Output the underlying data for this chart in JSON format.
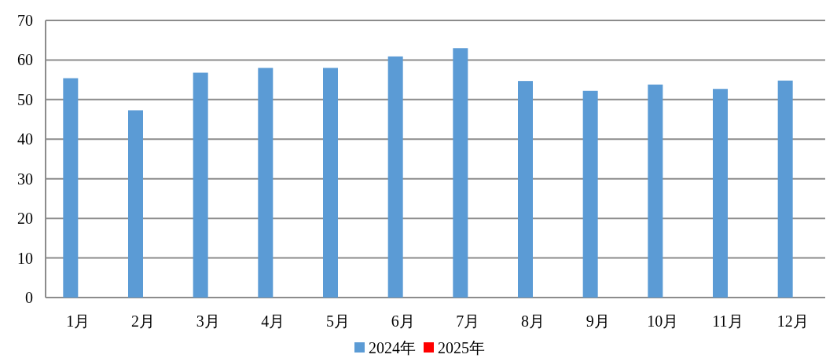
{
  "chart_data": {
    "type": "bar",
    "categories": [
      "1月",
      "2月",
      "3月",
      "4月",
      "5月",
      "6月",
      "7月",
      "8月",
      "9月",
      "10月",
      "11月",
      "12月"
    ],
    "series": [
      {
        "name": "2024年",
        "color": "#5b9bd5",
        "values": [
          55.4,
          47.3,
          56.8,
          58.0,
          58.0,
          60.9,
          63.0,
          54.7,
          52.2,
          53.8,
          52.7,
          54.8
        ]
      },
      {
        "name": "2025年",
        "color": "#ff0000",
        "values": [
          null,
          null,
          null,
          null,
          null,
          null,
          null,
          null,
          null,
          null,
          null,
          null
        ]
      }
    ],
    "ylim": [
      0,
      70
    ],
    "yticks": [
      0,
      10,
      20,
      30,
      40,
      50,
      60,
      70
    ],
    "grid": "y",
    "legend": "bottom"
  }
}
